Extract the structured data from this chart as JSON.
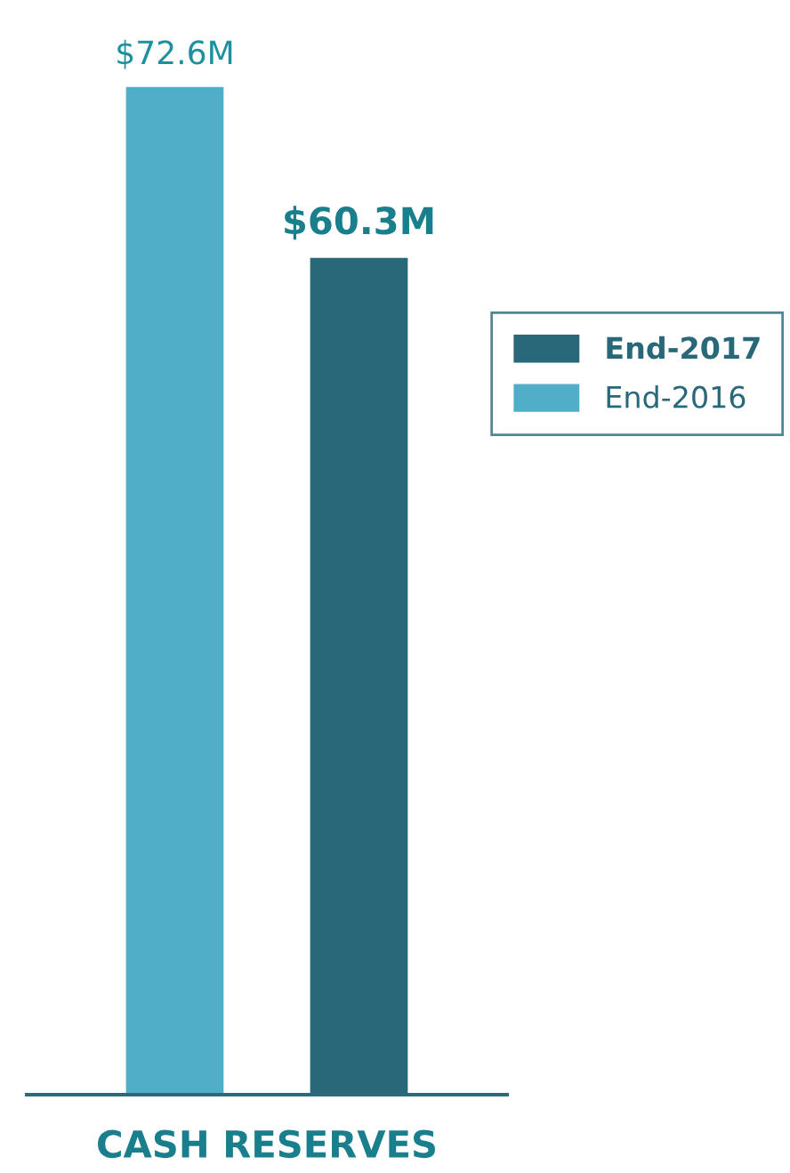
{
  "chart_data": {
    "type": "bar",
    "categories": [
      "CASH RESERVES"
    ],
    "series": [
      {
        "name": "End-2016",
        "color": "#4fafc9",
        "values": [
          72.6
        ],
        "value_labels": [
          "$72.6M"
        ]
      },
      {
        "name": "End-2017",
        "color": "#286878",
        "values": [
          60.3
        ],
        "value_labels": [
          "$60.3M"
        ]
      }
    ],
    "legend": "right",
    "grid": false
  }
}
